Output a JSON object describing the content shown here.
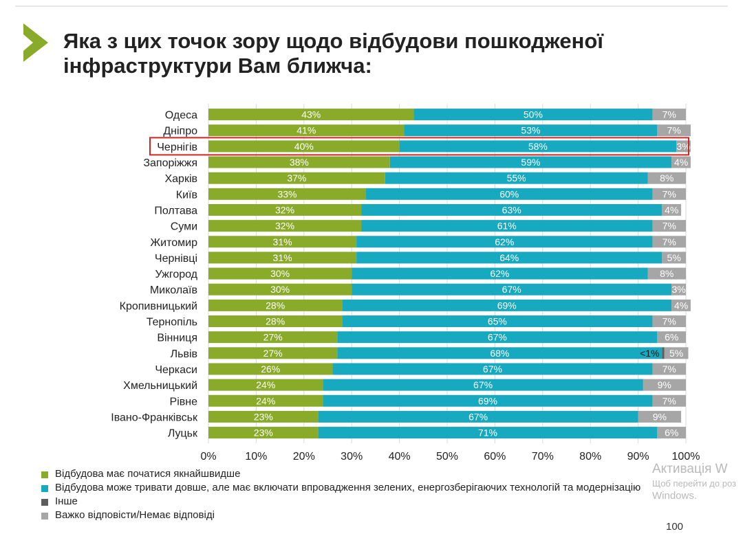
{
  "title": "Яка з цих точок зору щодо відбудови пошкодженої інфраструктури Вам ближча:",
  "colors": {
    "accent": "#8aab2a",
    "series": [
      "#8aab2a",
      "#16a9c0",
      "#5e5e5e",
      "#a6a6a6"
    ],
    "highlight": "#d32424"
  },
  "chart_data": {
    "type": "bar",
    "orientation": "horizontal",
    "stacked": true,
    "title": "",
    "xlabel": "",
    "ylabel": "",
    "xlim": [
      0,
      100
    ],
    "xticks": [
      "0%",
      "10%",
      "20%",
      "30%",
      "40%",
      "50%",
      "60%",
      "70%",
      "80%",
      "90%",
      "100%"
    ],
    "categories": [
      "Одеса",
      "Дніпро",
      "Чернігів",
      "Запоріжжя",
      "Харків",
      "Київ",
      "Полтава",
      "Суми",
      "Житомир",
      "Чернівці",
      "Ужгород",
      "Миколаїв",
      "Кропивницький",
      "Тернопіль",
      "Вінниця",
      "Львів",
      "Черкаси",
      "Хмельницький",
      "Рівне",
      "Івано-Франківськ",
      "Луцьк"
    ],
    "highlighted_category": "Чернігів",
    "series": [
      {
        "name": "Відбудова має початися якнайшвидше",
        "values": [
          43,
          41,
          40,
          38,
          37,
          33,
          32,
          32,
          31,
          31,
          30,
          30,
          28,
          28,
          27,
          27,
          26,
          24,
          24,
          23,
          23
        ]
      },
      {
        "name": "Відбудова може тривати довше, але має включати впровадження зелених, енергозберігаючих технологій та модернізацію",
        "values": [
          50,
          53,
          58,
          59,
          55,
          60,
          63,
          61,
          62,
          64,
          62,
          67,
          69,
          65,
          67,
          68,
          67,
          67,
          69,
          67,
          71
        ]
      },
      {
        "name": "Інше",
        "values": [
          0,
          0,
          0,
          0,
          0,
          0,
          0,
          0,
          0,
          0,
          0,
          0,
          0,
          0,
          0,
          0.5,
          0,
          0,
          0,
          0,
          0
        ]
      },
      {
        "name": "Важко відповісти/Немає відповіді",
        "values": [
          7,
          7,
          3,
          4,
          8,
          7,
          4,
          7,
          7,
          5,
          8,
          3,
          4,
          7,
          6,
          5,
          7,
          9,
          7,
          9,
          6
        ]
      }
    ],
    "labels": [
      [
        "43%",
        "50%",
        "",
        "7%"
      ],
      [
        "41%",
        "53%",
        "",
        "7%"
      ],
      [
        "40%",
        "58%",
        "",
        "3%"
      ],
      [
        "38%",
        "59%",
        "",
        "4%"
      ],
      [
        "37%",
        "55%",
        "",
        "8%"
      ],
      [
        "33%",
        "60%",
        "",
        "7%"
      ],
      [
        "32%",
        "63%",
        "",
        "4%"
      ],
      [
        "32%",
        "61%",
        "",
        "7%"
      ],
      [
        "31%",
        "62%",
        "",
        "7%"
      ],
      [
        "31%",
        "64%",
        "",
        "5%"
      ],
      [
        "30%",
        "62%",
        "",
        "8%"
      ],
      [
        "30%",
        "67%",
        "",
        "3%"
      ],
      [
        "28%",
        "69%",
        "",
        "4%"
      ],
      [
        "28%",
        "65%",
        "",
        "7%"
      ],
      [
        "27%",
        "67%",
        "",
        "6%"
      ],
      [
        "27%",
        "68%",
        "<1%",
        "5%"
      ],
      [
        "26%",
        "67%",
        "",
        "7%"
      ],
      [
        "24%",
        "67%",
        "",
        "9%"
      ],
      [
        "24%",
        "69%",
        "",
        "7%"
      ],
      [
        "23%",
        "67%",
        "",
        "9%"
      ],
      [
        "23%",
        "71%",
        "",
        "6%"
      ]
    ]
  },
  "legend": [
    "Відбудова має початися якнайшвидше",
    "Відбудова може тривати довше, але має включати впровадження зелених, енергозберігаючих технологій та модернізацію",
    "Інше",
    "Важко відповісти/Немає відповіді"
  ],
  "watermark": {
    "line1": "Активація W",
    "line2": "Щоб перейти до роз",
    "line3": "Windows."
  },
  "page_number": "100"
}
